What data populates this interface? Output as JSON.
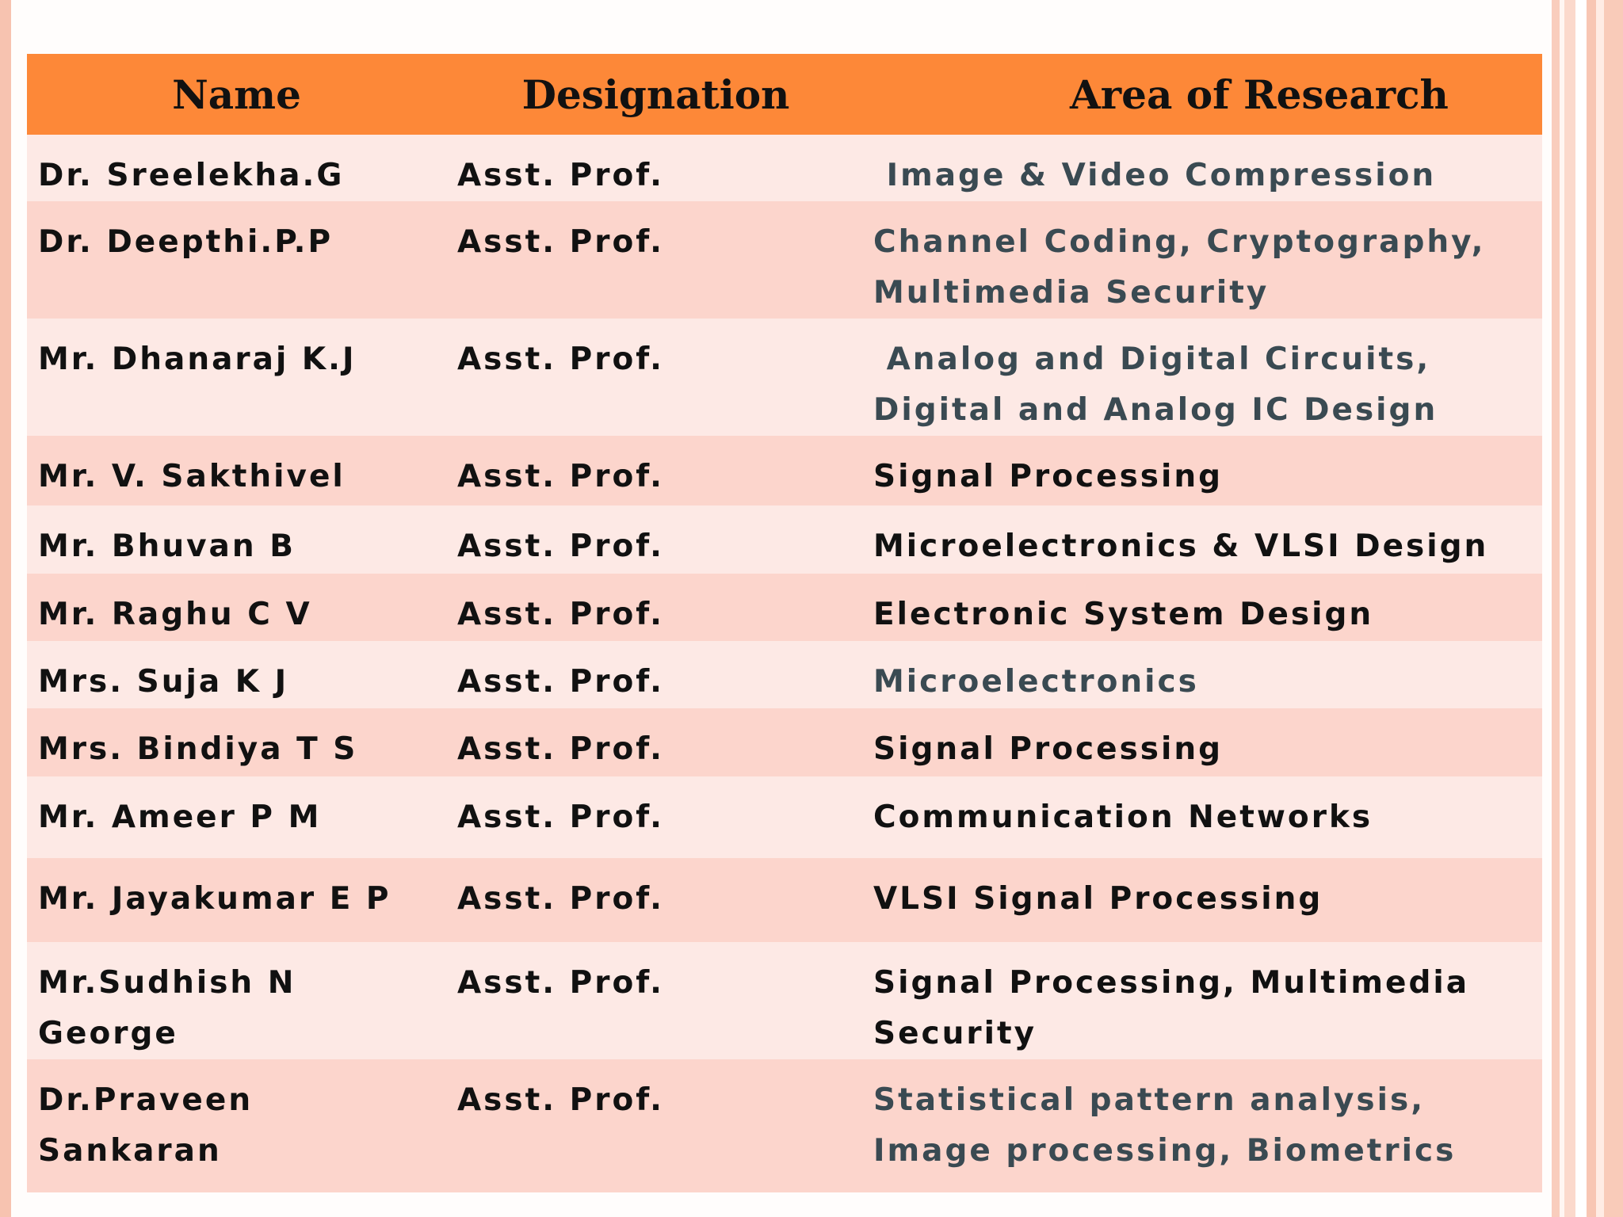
{
  "table": {
    "headers": [
      "Name",
      "Designation",
      "Area of Research"
    ],
    "rows": [
      {
        "name": [
          "Dr. Sreelekha.G"
        ],
        "designation": "Asst. Prof.",
        "area": [
          " Image & Video Compression"
        ],
        "area_color": "#3a4a52"
      },
      {
        "name": [
          "Dr. Deepthi.P.P"
        ],
        "designation": "Asst. Prof.",
        "area": [
          "Channel Coding, Cryptography,",
          "Multimedia Security"
        ],
        "area_color": "#3a4a52"
      },
      {
        "name": [
          "Mr. Dhanaraj K.J"
        ],
        "designation": "Asst. Prof.",
        "area": [
          " Analog and Digital Circuits,",
          "Digital and Analog IC Design"
        ],
        "area_color": "#3a4a52"
      },
      {
        "name": [
          "Mr. V. Sakthivel"
        ],
        "designation": "Asst. Prof.",
        "area": [
          "Signal Processing"
        ],
        "area_color": "#111111"
      },
      {
        "name": [
          "Mr. Bhuvan B"
        ],
        "designation": "Asst. Prof.",
        "area": [
          "Microelectronics & VLSI Design"
        ],
        "area_color": "#111111"
      },
      {
        "name": [
          "Mr. Raghu C V"
        ],
        "designation": "Asst. Prof.",
        "area": [
          "Electronic System Design"
        ],
        "area_color": "#111111"
      },
      {
        "name": [
          "Mrs. Suja K J"
        ],
        "designation": "Asst. Prof.",
        "area": [
          "Microelectronics"
        ],
        "area_color": "#3a4a52"
      },
      {
        "name": [
          "Mrs. Bindiya T S"
        ],
        "designation": "Asst. Prof.",
        "area": [
          "Signal Processing"
        ],
        "area_color": "#111111"
      },
      {
        "name": [
          "Mr. Ameer P M"
        ],
        "designation": "Asst. Prof.",
        "area": [
          "Communication Networks"
        ],
        "area_color": "#111111"
      },
      {
        "name": [
          "Mr. Jayakumar E P"
        ],
        "designation": "Asst. Prof.",
        "area": [
          "VLSI Signal Processing"
        ],
        "area_color": "#111111"
      },
      {
        "name": [
          "Mr.Sudhish N",
          "George"
        ],
        "designation": "Asst. Prof.",
        "area": [
          "Signal Processing, Multimedia",
          "Security"
        ],
        "area_color": "#111111"
      },
      {
        "name": [
          "Dr.Praveen",
          "Sankaran"
        ],
        "designation": "Asst. Prof.",
        "area": [
          "Statistical pattern analysis,",
          "Image processing, Biometrics"
        ],
        "area_color": "#3a4a52"
      }
    ]
  },
  "colors": {
    "header_bg": "#fd8838",
    "row_light": "#fde9e5",
    "row_dark": "#fcd5cc",
    "accent_border": "#f7c3b0"
  }
}
